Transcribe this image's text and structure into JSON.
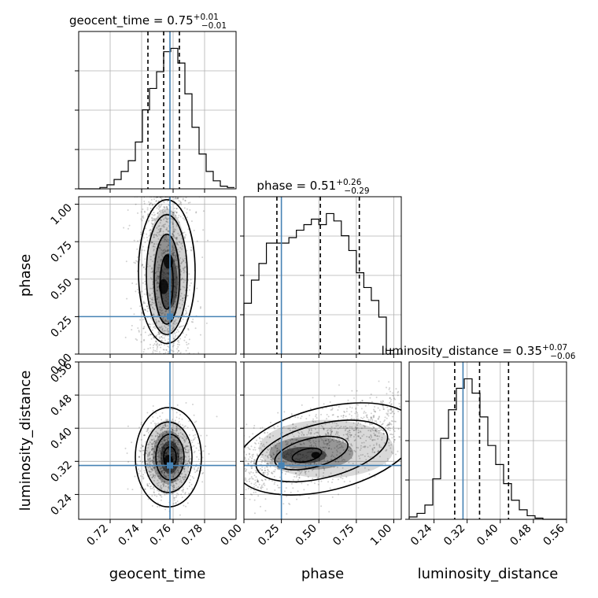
{
  "chart_data": {
    "type": "scatter",
    "subtype": "corner-plot",
    "parameters": [
      {
        "name": "geocent_time",
        "range": [
          0.7,
          0.8
        ],
        "ticks": [
          0.72,
          0.74,
          0.76,
          0.78
        ],
        "truth": 0.758,
        "quantiles": [
          0.744,
          0.754,
          0.764
        ],
        "title_main": "geocent_time = 0.75",
        "title_plus": "+0.01",
        "title_minus": "−0.01",
        "tick_labels": [
          "0.72",
          "0.74",
          "0.76",
          "0.78"
        ],
        "axis_label": "geocent_time"
      },
      {
        "name": "phase",
        "range": [
          0.0,
          1.05
        ],
        "ticks": [
          0.0,
          0.25,
          0.5,
          0.75,
          1.0
        ],
        "truth": 0.25,
        "quantiles": [
          0.22,
          0.51,
          0.77
        ],
        "title_main": "phase = 0.51",
        "title_plus": "+0.26",
        "title_minus": "−0.29",
        "tick_labels": [
          "0.00",
          "0.25",
          "0.50",
          "0.75",
          "1.00"
        ],
        "axis_label": "phase"
      },
      {
        "name": "luminosity_distance",
        "range": [
          0.18,
          0.56
        ],
        "ticks": [
          0.24,
          0.32,
          0.4,
          0.48,
          0.56
        ],
        "truth": 0.31,
        "quantiles": [
          0.29,
          0.35,
          0.42
        ],
        "title_main": "luminosity_distance = 0.35",
        "title_plus": "+0.07",
        "title_minus": "−0.06",
        "tick_labels": [
          "0.24",
          "0.32",
          "0.40",
          "0.48",
          "0.56"
        ],
        "axis_label": "luminosity_distance"
      }
    ],
    "histograms": [
      {
        "parameter": "geocent_time",
        "bin_edges_start": 0.7,
        "bin_width": 0.0045,
        "counts": [
          0,
          0,
          0,
          2,
          6,
          14,
          26,
          42,
          70,
          118,
          150,
          175,
          205,
          210,
          188,
          142,
          92,
          52,
          26,
          12,
          4,
          2
        ]
      },
      {
        "parameter": "phase",
        "bin_edges_start": 0.0,
        "bin_width": 0.05,
        "counts": [
          55,
          80,
          98,
          120,
          120,
          120,
          126,
          134,
          140,
          146,
          140,
          152,
          144,
          128,
          112,
          88,
          72,
          58,
          40,
          4
        ]
      },
      {
        "parameter": "luminosity_distance",
        "bin_edges_start": 0.18,
        "bin_width": 0.019,
        "counts": [
          2,
          5,
          12,
          34,
          68,
          92,
          110,
          118,
          106,
          86,
          62,
          46,
          30,
          16,
          8,
          3,
          1,
          0,
          0,
          0
        ]
      }
    ],
    "truth_color": "#4682b4",
    "grid": true
  }
}
